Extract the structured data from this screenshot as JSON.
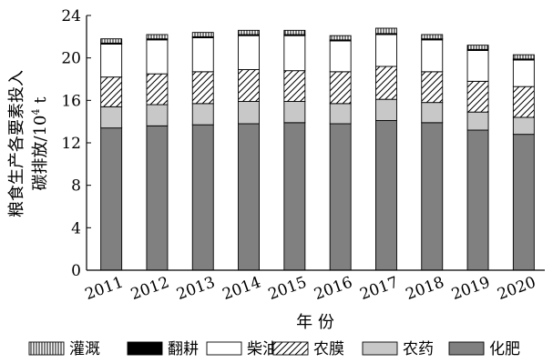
{
  "chart_data": {
    "type": "bar",
    "stacked": true,
    "categories": [
      "2011",
      "2012",
      "2013",
      "2014",
      "2015",
      "2016",
      "2017",
      "2018",
      "2019",
      "2020"
    ],
    "series": [
      {
        "name": "化肥",
        "pattern": "solid-dark-gray",
        "color": "#808080",
        "values": [
          13.4,
          13.6,
          13.7,
          13.8,
          13.9,
          13.8,
          14.1,
          13.9,
          13.2,
          12.8
        ]
      },
      {
        "name": "农药",
        "pattern": "solid-light-gray",
        "color": "#c8c8c8",
        "values": [
          2.0,
          2.0,
          2.0,
          2.1,
          2.0,
          1.9,
          2.0,
          1.9,
          1.7,
          1.6
        ]
      },
      {
        "name": "农膜",
        "pattern": "diagonal-hatch",
        "color": "#ffffff",
        "values": [
          2.8,
          2.9,
          3.0,
          3.0,
          2.9,
          3.0,
          3.1,
          2.9,
          2.9,
          2.9
        ]
      },
      {
        "name": "柴油",
        "pattern": "white",
        "color": "#ffffff",
        "values": [
          3.1,
          3.2,
          3.2,
          3.2,
          3.3,
          2.9,
          3.0,
          3.0,
          2.9,
          2.5
        ]
      },
      {
        "name": "翻耕",
        "pattern": "solid-black",
        "color": "#000000",
        "values": [
          0.1,
          0.1,
          0.1,
          0.1,
          0.1,
          0.1,
          0.1,
          0.1,
          0.1,
          0.1
        ]
      },
      {
        "name": "灌溉",
        "pattern": "vertical-lines",
        "color": "#ffffff",
        "values": [
          0.4,
          0.4,
          0.4,
          0.4,
          0.4,
          0.4,
          0.5,
          0.4,
          0.4,
          0.4
        ]
      }
    ],
    "xlabel": "年 份",
    "ylabel_line1": "粮食生产各要素投入",
    "ylabel_line2_prefix": "碳排放/10",
    "ylabel_line2_sup": "4",
    "ylabel_line2_suffix": " t",
    "ylim": [
      0,
      24
    ],
    "yticks": [
      0,
      4,
      8,
      12,
      16,
      20,
      24
    ],
    "legend_position": "bottom",
    "legend_order": [
      "灌溉",
      "翻耕",
      "柴油",
      "农膜",
      "农药",
      "化肥"
    ],
    "grid": false
  }
}
